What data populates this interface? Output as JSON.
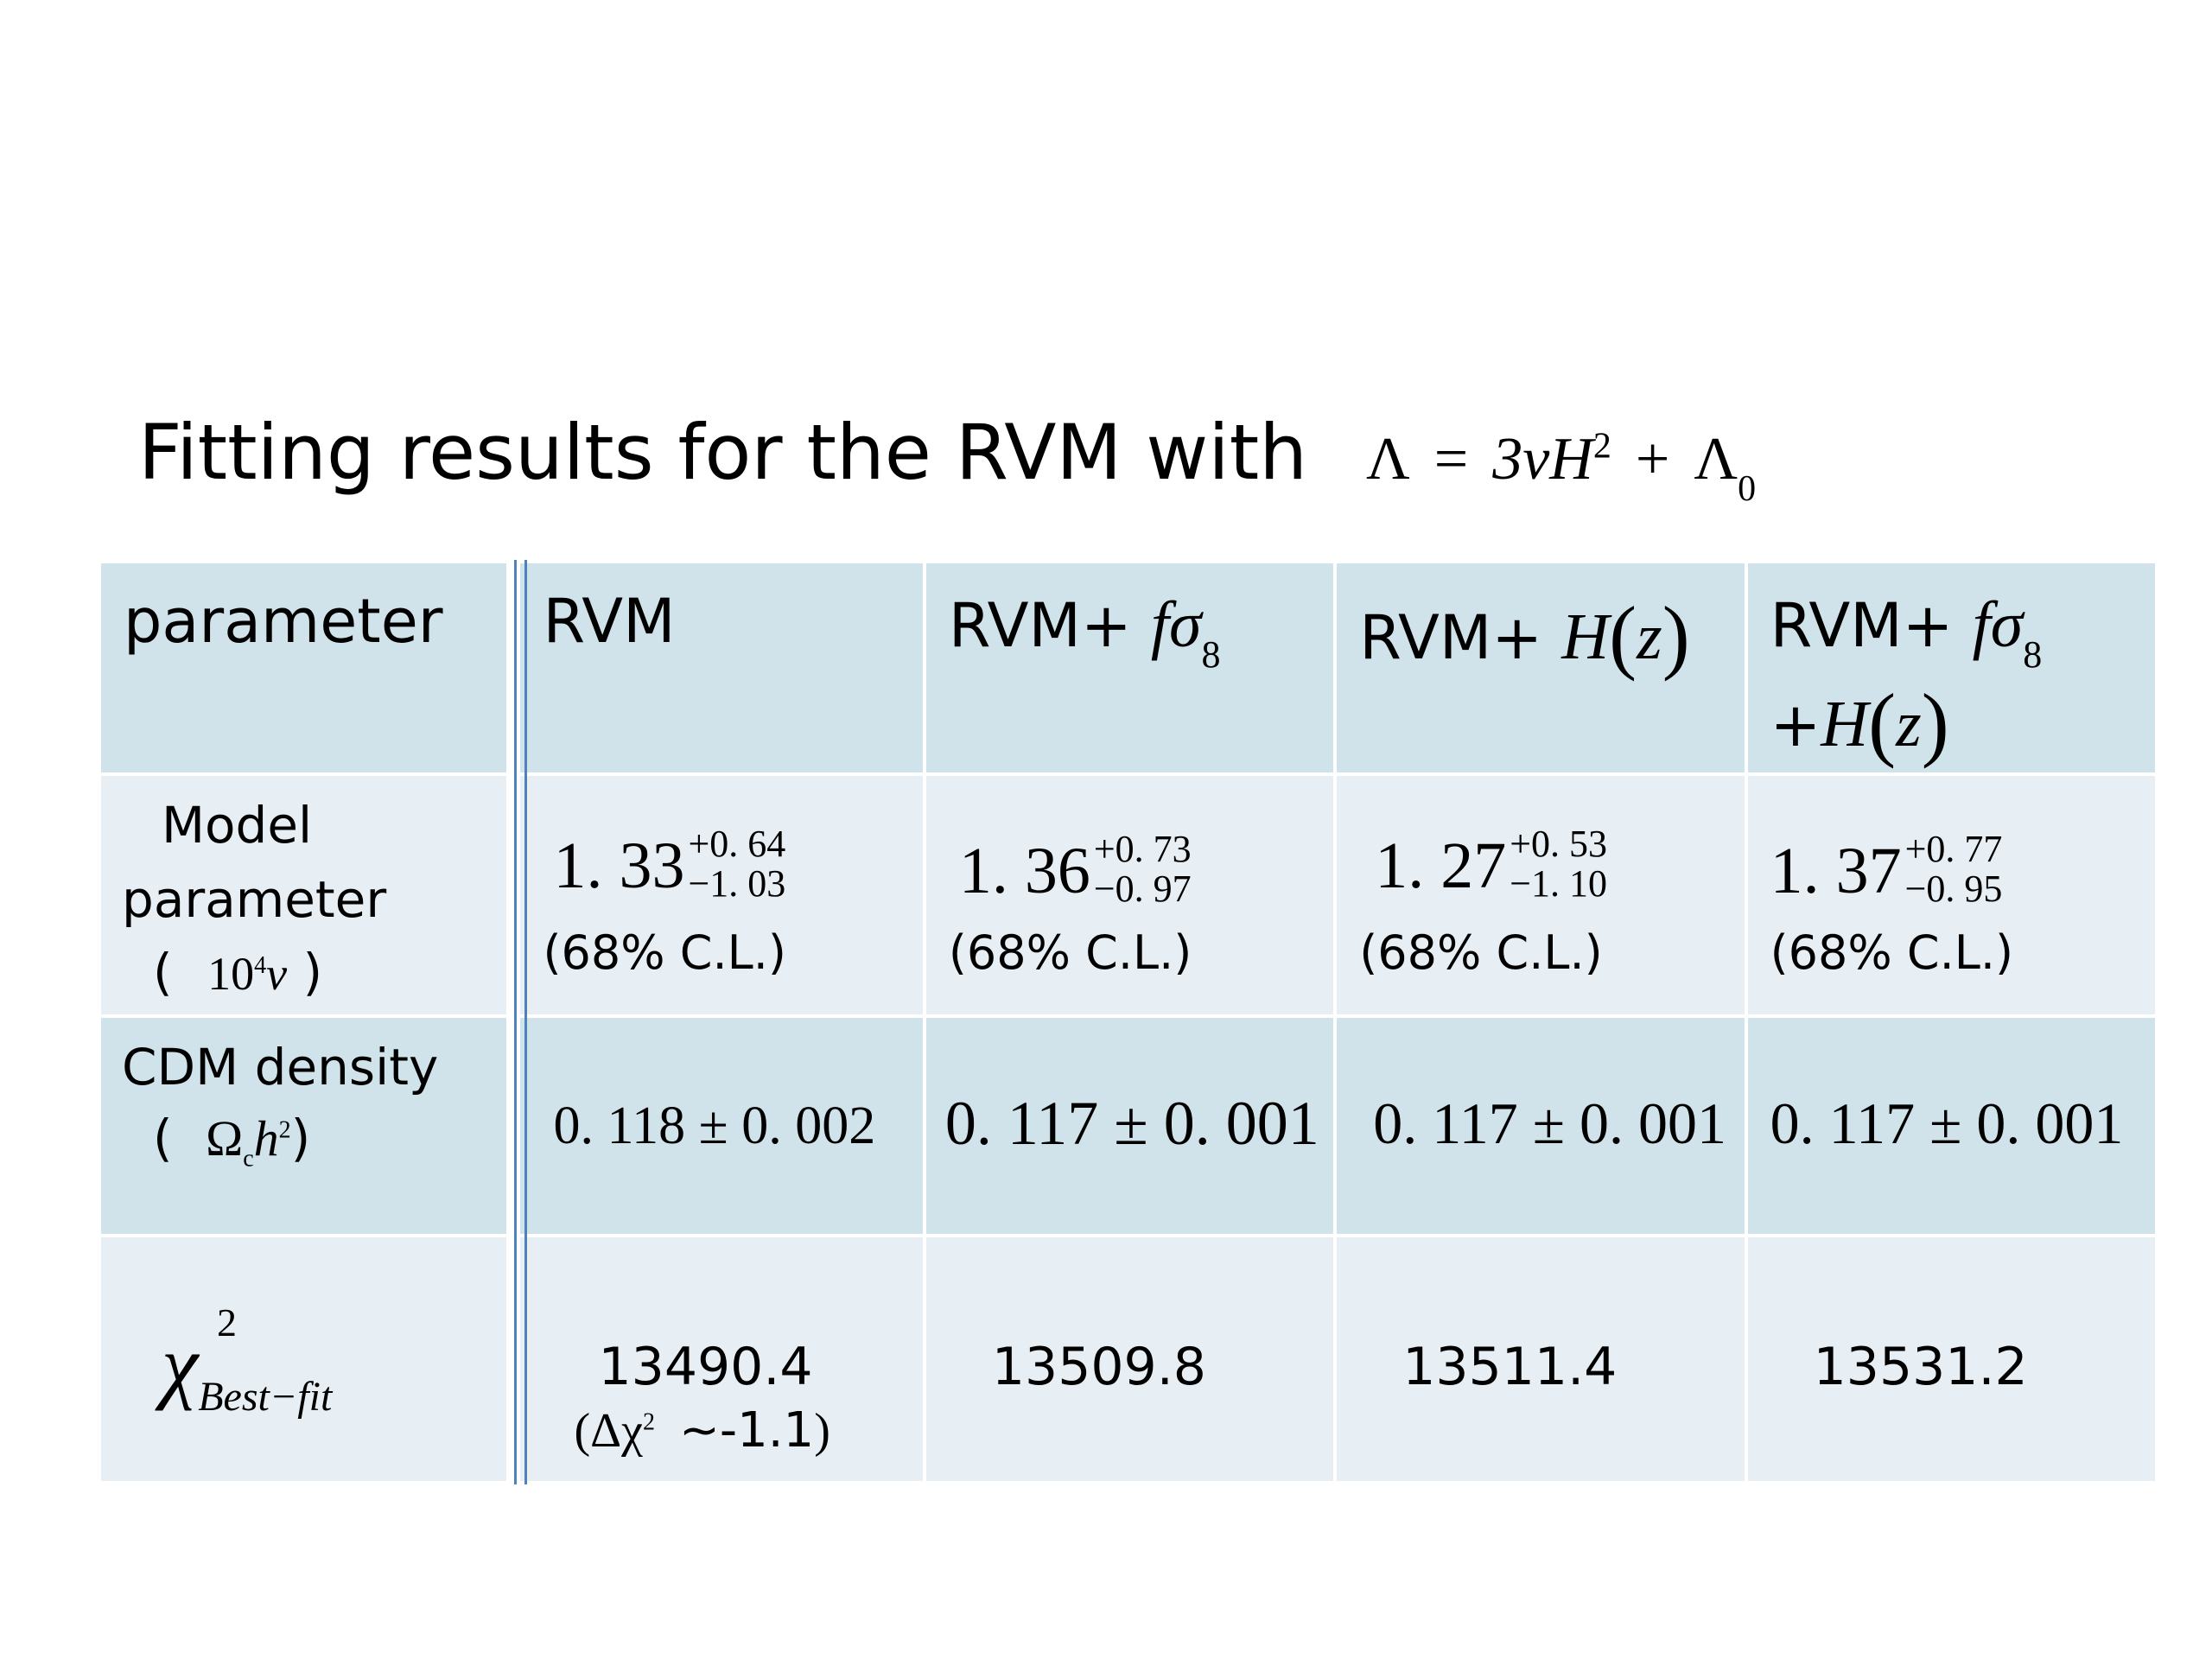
{
  "title": {
    "text": "Fitting results for the RVM with",
    "formula_lhs": "Λ",
    "formula_eq": "=",
    "formula_rhs_a": "3νH",
    "formula_rhs_a_sup": "2",
    "formula_plus": "+",
    "formula_rhs_b": "Λ",
    "formula_rhs_b_sub": "0"
  },
  "table": {
    "headers": {
      "parameter": "parameter",
      "rvm": "RVM",
      "rvm_fs8_prefix": "RVM+",
      "rvm_hz_prefix": "RVM+",
      "rvm_both_prefix": "RVM+",
      "rvm_both_line2_prefix": "+",
      "fsigma": "fσ",
      "fsigma_sub": "8",
      "hz_h": "H",
      "hz_z": "z"
    },
    "row_labels": {
      "model_line1": "Model",
      "model_line2": "parameter",
      "model_line3_open": "(",
      "model_line3_math": "10",
      "model_line3_sup": "4",
      "model_line3_nu": "ν",
      "model_line3_close": ")",
      "cdm_line1": "CDM density",
      "cdm_open": "(",
      "cdm_omega": "Ω",
      "cdm_sub": "c",
      "cdm_h": "h",
      "cdm_sup": "2",
      "cdm_close": ")",
      "chi_symbol": "χ",
      "chi_sup": "2",
      "chi_sub": "Best−fit"
    },
    "model_parameter": [
      {
        "value": "1. 33",
        "plus": "+0. 64",
        "minus": "−1. 03",
        "cl": "(68% C.L.)"
      },
      {
        "value": "1. 36",
        "plus": "+0. 73",
        "minus": "−0. 97",
        "cl": "(68% C.L.)"
      },
      {
        "value": "1. 27",
        "plus": "+0. 53",
        "minus": "−1. 10",
        "cl": "(68% C.L.)"
      },
      {
        "value": "1. 37",
        "plus": "+0. 77",
        "minus": "−0. 95",
        "cl": "(68% C.L.)"
      }
    ],
    "cdm_density": [
      "0. 118 ± 0. 002",
      "0. 117 ± 0. 001",
      "0. 117 ± 0. 001",
      "0. 117 ± 0. 001"
    ],
    "chi2_best_fit": [
      "13490.4",
      "13509.8",
      "13511.4",
      "13531.2"
    ],
    "chi2_delta": {
      "open": "(Δχ",
      "sup": "2",
      "value": "~-1.1",
      "close": ")"
    }
  },
  "colors": {
    "row_dark": "#d0e3ea",
    "row_light": "#e8eff4",
    "separator": "#4f81bd"
  }
}
